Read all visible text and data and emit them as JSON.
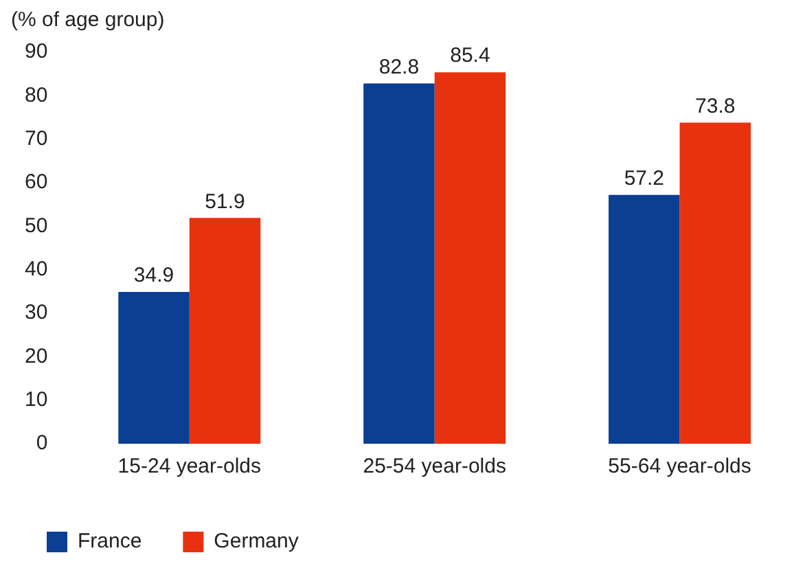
{
  "chart_data": {
    "type": "bar",
    "ylabel": "(% of age group)",
    "categories": [
      "15-24 year-olds",
      "25-54 year-olds",
      "55-64 year-olds"
    ],
    "series": [
      {
        "name": "France",
        "color": "#0a3f94",
        "values": [
          34.9,
          82.8,
          57.2
        ]
      },
      {
        "name": "Germany",
        "color": "#e8320f",
        "values": [
          51.9,
          85.4,
          73.8
        ]
      }
    ],
    "ylim": [
      0,
      90
    ],
    "yticks": [
      0,
      10,
      20,
      30,
      40,
      50,
      60,
      70,
      80,
      90
    ],
    "grid": false,
    "legend": "bottom left",
    "data_labels": true
  }
}
